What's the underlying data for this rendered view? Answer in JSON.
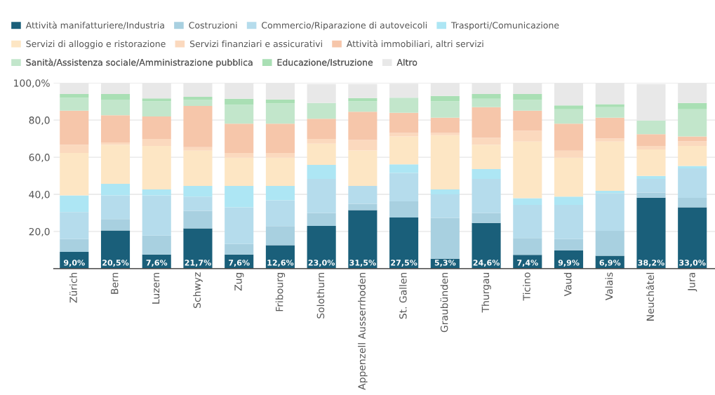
{
  "chart_data": {
    "type": "bar",
    "stacked": true,
    "categories": [
      "Zürich",
      "Bern",
      "Luzern",
      "Schwyz",
      "Zug",
      "Fribourg",
      "Solothurn",
      "Appenzell Ausserrhoden",
      "St. Gallen",
      "Graubünden",
      "Thurgau",
      "Ticino",
      "Vaud",
      "Valais",
      "Neuchâtel",
      "Jura"
    ],
    "series": [
      {
        "name": "Attività manifatturiere/Industria",
        "color": "#1a5f7a",
        "values": [
          9.0,
          20.5,
          7.6,
          21.7,
          7.6,
          12.6,
          23.0,
          31.5,
          27.5,
          5.3,
          24.6,
          7.4,
          9.9,
          6.9,
          38.2,
          33.0
        ],
        "value_labels": [
          "9,0%",
          "20,5%",
          "7,6%",
          "21,7%",
          "7,6%",
          "12,6%",
          "23,0%",
          "31,5%",
          "27,5%",
          "5,3%",
          "24,6%",
          "7,4%",
          "9,9%",
          "6,9%",
          "38,2%",
          "33,0%"
        ]
      },
      {
        "name": "Costruzioni",
        "color": "#a8d0e0",
        "values": [
          6.9,
          6.2,
          10.2,
          9.4,
          5.7,
          10.3,
          6.9,
          3.4,
          8.7,
          22.0,
          5.3,
          9.1,
          6.0,
          13.4,
          2.7,
          5.1
        ]
      },
      {
        "name": "Commercio/Riparazione di autoveicoli",
        "color": "#b5dcec",
        "values": [
          14.6,
          12.7,
          21.6,
          7.7,
          19.7,
          13.9,
          18.4,
          9.6,
          15.3,
          12.7,
          18.4,
          17.8,
          18.4,
          20.4,
          7.4,
          15.9
        ]
      },
      {
        "name": "Trasporti/Comunicazione",
        "color": "#ade6f4",
        "values": [
          8.9,
          6.3,
          3.2,
          5.7,
          11.5,
          7.7,
          7.6,
          null,
          4.7,
          2.6,
          5.3,
          3.6,
          4.5,
          1.2,
          1.6,
          1.3
        ]
      },
      {
        "name": "Servizi di alloggio e ristorazione",
        "color": "#fde6c4",
        "values": [
          22.9,
          21.0,
          23.5,
          19.0,
          15.2,
          15.2,
          11.4,
          19.1,
          15.0,
          29.2,
          13.1,
          30.5,
          20.9,
          26.5,
          14.3,
          10.8
        ]
      },
      {
        "name": "Servizi finanziari e assicurativi",
        "color": "#fbd9be",
        "values": [
          4.4,
          1.3,
          3.8,
          1.9,
          2.6,
          2.6,
          2.6,
          5.7,
          1.9,
          1.3,
          3.8,
          5.9,
          3.8,
          1.7,
          1.9,
          2.5
        ]
      },
      {
        "name": "Attività immobiliari, altri servizi",
        "color": "#f6c6aa",
        "values": [
          18.4,
          14.6,
          12.0,
          22.2,
          15.8,
          15.8,
          10.8,
          15.2,
          10.8,
          8.2,
          16.5,
          10.8,
          14.6,
          11.2,
          6.3,
          2.6
        ]
      },
      {
        "name": "Sanità/Assistenza sociale/Amministrazione pubblica",
        "color": "#c2e6cb",
        "values": [
          7.0,
          8.4,
          8.3,
          3.2,
          10.2,
          10.8,
          8.5,
          5.7,
          8.2,
          8.9,
          4.5,
          5.7,
          7.7,
          5.7,
          7.4,
          14.6
        ]
      },
      {
        "name": "Educazione/Istruzione",
        "color": "#a9dfb4",
        "values": [
          1.9,
          3.0,
          1.5,
          1.7,
          3.2,
          2.2,
          null,
          1.7,
          null,
          2.8,
          2.5,
          3.2,
          2.1,
          1.6,
          null,
          3.4
        ]
      },
      {
        "name": "Altro",
        "color": "#e8e8e8",
        "values": [
          6.0,
          6.0,
          8.3,
          7.5,
          8.5,
          8.9,
          10.2,
          7.5,
          7.5,
          7.0,
          6.0,
          6.0,
          12.1,
          11.4,
          19.6,
          10.8
        ]
      }
    ],
    "ylim": [
      0,
      100
    ],
    "yticks": [
      {
        "value": 20,
        "label": "20,0"
      },
      {
        "value": 40,
        "label": "40,0"
      },
      {
        "value": 60,
        "label": "60,0"
      },
      {
        "value": 80,
        "label": "80,0"
      },
      {
        "value": 100,
        "label": "100,0%"
      }
    ],
    "grid": "y",
    "legend": "top"
  }
}
